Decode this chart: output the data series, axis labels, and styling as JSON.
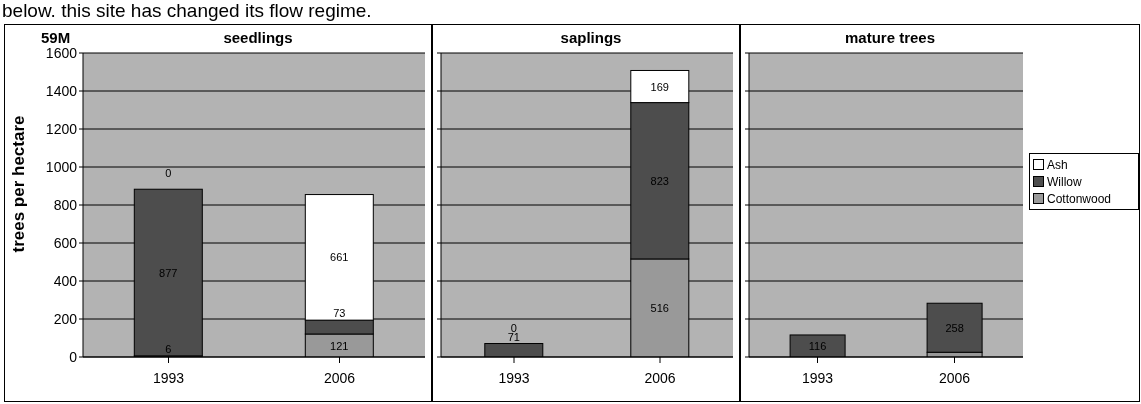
{
  "chart_data": [
    {
      "type": "bar",
      "title": "seedlings",
      "ylabel": "trees per hectare",
      "annotations": [
        "below. this site has changed its flow regime.",
        "59M"
      ],
      "categories": [
        "1993",
        "2006"
      ],
      "stacked": true,
      "ylim": [
        0,
        1600
      ],
      "yticks": [
        0,
        200,
        400,
        600,
        800,
        1000,
        1200,
        1400,
        1600
      ],
      "grid": "y",
      "legend": false,
      "series": [
        {
          "color": "#999999",
          "values": [
            6,
            121
          ],
          "value_labels": [
            "6",
            "121"
          ]
        },
        {
          "color": "#4d4d4d",
          "values": [
            877,
            73
          ],
          "value_labels": [
            "877",
            "73"
          ]
        },
        {
          "color": "#ffffff",
          "values": [
            0,
            661
          ],
          "value_labels": [
            "0",
            "661"
          ]
        }
      ]
    },
    {
      "type": "bar",
      "title": "saplings",
      "categories": [
        "1993",
        "2006"
      ],
      "stacked": true,
      "ylim": [
        0,
        1600
      ],
      "yticks": [
        {
          "value": 0,
          "label": null
        },
        {
          "value": 200,
          "label": null
        },
        {
          "value": 400,
          "label": null
        },
        {
          "value": 600,
          "label": null
        },
        {
          "value": 800,
          "label": null
        },
        {
          "value": 1000,
          "label": null
        },
        {
          "value": 1200,
          "label": null
        },
        {
          "value": 1400,
          "label": null
        },
        {
          "value": 1600,
          "label": null
        }
      ],
      "tick_labels": "x",
      "grid": "y",
      "legend": false,
      "series": [
        {
          "color": "#999999",
          "values": [
            0,
            516
          ],
          "value_labels": [
            null,
            "516"
          ]
        },
        {
          "color": "#4d4d4d",
          "values": [
            71,
            823
          ],
          "value_labels": [
            "71",
            "823"
          ]
        },
        {
          "color": "#ffffff",
          "values": [
            0,
            169
          ],
          "value_labels": [
            "0",
            "169"
          ]
        }
      ]
    },
    {
      "type": "bar",
      "title": "mature trees",
      "categories": [
        "1993",
        "2006"
      ],
      "stacked": true,
      "ylim": [
        0,
        1600
      ],
      "yticks": [
        {
          "value": 0,
          "label": null
        },
        {
          "value": 200,
          "label": null
        },
        {
          "value": 400,
          "label": null
        },
        {
          "value": 600,
          "label": null
        },
        {
          "value": 800,
          "label": null
        },
        {
          "value": 1000,
          "label": null
        },
        {
          "value": 1200,
          "label": null
        },
        {
          "value": 1400,
          "label": null
        },
        {
          "value": 1600,
          "label": null
        }
      ],
      "tick_labels": "x",
      "grid": "y",
      "legend": "right",
      "series": [
        {
          "name": "Cottonwood",
          "color": "#999999",
          "values": [
            0,
            25
          ],
          "value_labels": [
            null,
            null
          ]
        },
        {
          "name": "Willow",
          "color": "#4d4d4d",
          "values": [
            116,
            258
          ],
          "value_labels": [
            "116",
            "258"
          ]
        },
        {
          "name": "Ash",
          "color": "#ffffff",
          "values": [
            0,
            0
          ],
          "value_labels": [
            null,
            null
          ]
        }
      ]
    }
  ]
}
